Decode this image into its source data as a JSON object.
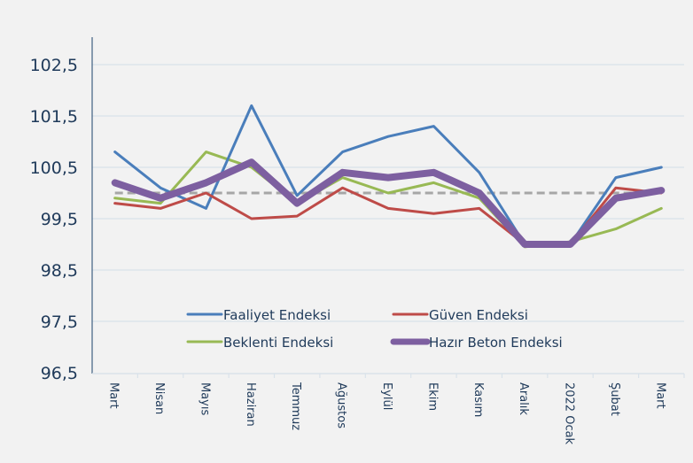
{
  "chart_data": {
    "type": "line",
    "title": "",
    "xlabel": "",
    "ylabel": "",
    "ylim": [
      96.5,
      103.0
    ],
    "yticks": [
      "102,5",
      "101,5",
      "100,5",
      "99,5",
      "98,5",
      "97,5",
      "96,5"
    ],
    "ytick_values": [
      102.5,
      101.5,
      100.5,
      99.5,
      98.5,
      97.5,
      96.5
    ],
    "grid": true,
    "legend_position": "bottom-center-inside",
    "categories": [
      "Mart",
      "Nisan",
      "Mayıs",
      "Haziran",
      "Temmuz",
      "Ağustos",
      "Eylül",
      "Ekim",
      "Kasım",
      "Aralık",
      "2022 Ocak",
      "Şubat",
      "Mart"
    ],
    "reference_line": {
      "value": 100,
      "style": "dashed",
      "color": "#a6a6a6"
    },
    "series": [
      {
        "name": "Faaliyet Endeksi",
        "color": "#4a7ebb",
        "width": "thin",
        "values": [
          100.8,
          100.1,
          99.7,
          101.7,
          99.95,
          100.8,
          101.1,
          101.3,
          100.4,
          99.0,
          99.0,
          100.3,
          100.5
        ]
      },
      {
        "name": "Güven Endeksi",
        "color": "#be4b48",
        "width": "thin",
        "values": [
          99.8,
          99.7,
          100.0,
          99.5,
          99.55,
          100.1,
          99.7,
          99.6,
          99.7,
          99.0,
          99.0,
          100.1,
          100.0
        ]
      },
      {
        "name": "Beklenti Endeksi",
        "color": "#98b954",
        "width": "thin",
        "values": [
          99.9,
          99.8,
          100.8,
          100.5,
          99.8,
          100.3,
          100.0,
          100.2,
          99.9,
          98.95,
          99.05,
          99.3,
          99.7
        ]
      },
      {
        "name": "Hazır Beton Endeksi",
        "color": "#7d5fa0",
        "width": "thick",
        "values": [
          100.2,
          99.9,
          100.2,
          100.6,
          99.8,
          100.4,
          100.3,
          100.4,
          100.0,
          99.0,
          99.0,
          99.9,
          100.05
        ]
      }
    ],
    "colors": {
      "background": "#f2f2f2",
      "axis": "#4d6a8a",
      "grid": "#d9e2ea",
      "text": "#1f3a5a"
    }
  }
}
